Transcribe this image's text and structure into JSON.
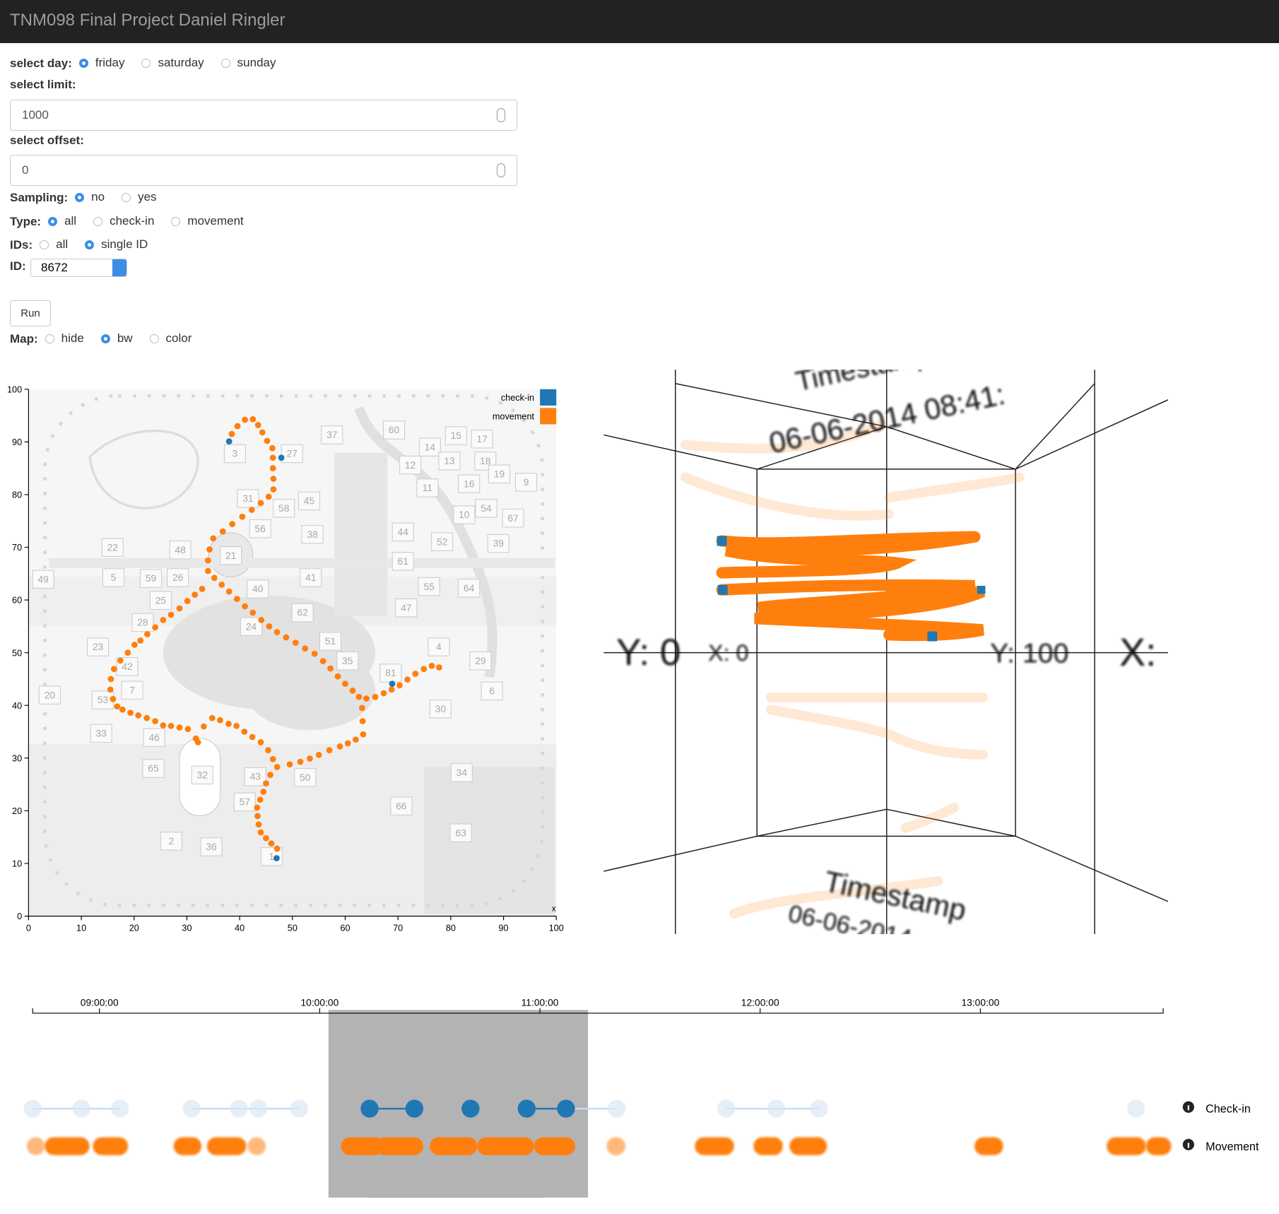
{
  "header": {
    "title": "TNM098 Final Project Daniel Ringler"
  },
  "controls": {
    "day": {
      "label": "select day:",
      "options": [
        "friday",
        "saturday",
        "sunday"
      ],
      "selected": 0
    },
    "limit": {
      "label": "select limit:",
      "value": 1000
    },
    "offset": {
      "label": "select offset:",
      "value": 0
    },
    "sampling": {
      "label": "Sampling:",
      "options": [
        "no",
        "yes"
      ],
      "selected": 0
    },
    "type": {
      "label": "Type:",
      "options": [
        "all",
        "check-in",
        "movement"
      ],
      "selected": 0
    },
    "ids": {
      "label": "IDs:",
      "options": [
        "all",
        "single ID"
      ],
      "selected": 1
    },
    "id": {
      "label": "ID:",
      "value": 8672
    },
    "run": "Run",
    "map": {
      "label": "Map:",
      "options": [
        "hide",
        "bw",
        "color"
      ],
      "selected": 1
    }
  },
  "map_labels": [
    "3",
    "27",
    "37",
    "60",
    "15",
    "14",
    "17",
    "13",
    "12",
    "18",
    "19",
    "11",
    "16",
    "9",
    "31",
    "58",
    "45",
    "10",
    "54",
    "67",
    "56",
    "38",
    "44",
    "52",
    "39",
    "22",
    "48",
    "21",
    "61",
    "49",
    "5",
    "59",
    "26",
    "40",
    "41",
    "55",
    "64",
    "25",
    "62",
    "47",
    "28",
    "24",
    "51",
    "4",
    "23",
    "35",
    "29",
    "42",
    "81",
    "7",
    "6",
    "20",
    "53",
    "30",
    "33",
    "46",
    "65",
    "32",
    "50",
    "34",
    "43",
    "57",
    "66",
    "63",
    "2",
    "36",
    "1"
  ],
  "three_d": {
    "top_title": "Timestamp",
    "top_time": "06-06-2014 08:41:",
    "bottom_title": "Timestamp",
    "bottom_time": "06-06-2014",
    "y_start": "Y: 0",
    "x_start": "X: 0",
    "y_end": "Y: 100",
    "x_end": "X:"
  },
  "chart_data": [
    {
      "type": "scatter",
      "xlim": [
        0,
        100
      ],
      "ylim": [
        0,
        100
      ],
      "xticks": [
        0,
        10,
        20,
        30,
        40,
        50,
        60,
        70,
        80,
        90,
        100
      ],
      "yticks": [
        0,
        10,
        20,
        30,
        40,
        50,
        60,
        70,
        80,
        90,
        100
      ],
      "x_label": "x",
      "legend": "top-right",
      "series": [
        {
          "name": "check-in",
          "color": "#1f77b4",
          "x": [
            38.0,
            47.9,
            68.9,
            47.0
          ],
          "values": [
            90.1,
            87.0,
            44.1,
            11.0
          ]
        },
        {
          "name": "movement",
          "color": "#ff7f0e",
          "x": [
            38.5,
            39.6,
            41,
            42.5,
            43.5,
            44.3,
            45.2,
            46.2,
            46.3,
            46.3,
            46.4,
            46.4,
            45.5,
            44,
            42.3,
            40.5,
            38.6,
            36.8,
            35,
            34.3,
            34,
            34,
            35.2,
            36.6,
            38,
            39.5,
            41,
            42.5,
            44.1,
            45.6,
            47.1,
            48.8,
            50.6,
            52.4,
            54.2,
            55.8,
            57.2,
            58.6,
            60,
            61.4,
            62.6,
            64,
            65.7,
            67.3,
            68.8,
            70.3,
            71.8,
            73.3,
            74.9,
            76.4,
            77.8,
            63.2,
            63.3,
            63.4,
            62,
            60.5,
            59,
            57,
            55,
            53.3,
            51.5,
            49.5,
            47.1,
            45.8,
            45,
            44.5,
            43.9,
            43.3,
            43.4,
            43.6,
            44,
            45,
            46,
            47.1,
            32.9,
            31.5,
            30.1,
            28.6,
            27,
            25.5,
            24,
            22.5,
            21.2,
            20.1,
            18.8,
            17.4,
            16.2,
            15.6,
            15.5,
            16,
            16.8,
            17.8,
            19.3,
            20.8,
            22.4,
            24,
            25.5,
            27,
            28.6,
            30.2,
            31.7,
            32.1,
            33.2,
            34.8,
            36.3,
            37.9,
            39.4,
            40.9,
            42.4,
            44,
            45.4,
            46.3
          ],
          "values": [
            91.5,
            93,
            94.2,
            94.3,
            93.2,
            91.8,
            90.2,
            88.8,
            87,
            85,
            83,
            81,
            79.6,
            78.4,
            77.1,
            75.8,
            74.4,
            73,
            71.7,
            69.6,
            67.5,
            65.5,
            64.2,
            62.9,
            61.6,
            60.2,
            58.8,
            57.6,
            56.2,
            55,
            53.9,
            52.9,
            51.9,
            50.8,
            49.8,
            48.4,
            47,
            45.5,
            44.1,
            42.8,
            41.6,
            41.3,
            41.6,
            42.3,
            43,
            43.8,
            44.9,
            46,
            46.9,
            47.5,
            47.2,
            39.5,
            37,
            34.5,
            33.5,
            32.8,
            32.2,
            31.5,
            30.6,
            29.9,
            29.3,
            28.8,
            28.3,
            26.8,
            25.2,
            23.6,
            22.1,
            20.6,
            19,
            17.4,
            15.9,
            14.8,
            13.8,
            12.8,
            62.1,
            61,
            59.8,
            58.4,
            57.2,
            56.2,
            54.8,
            53.5,
            52.3,
            51.5,
            50,
            48.5,
            46.9,
            45,
            43,
            41.2,
            39.8,
            39.2,
            38.6,
            38.1,
            37.6,
            37,
            36.2,
            36.1,
            35.8,
            35.5,
            33.7,
            33,
            36,
            37.6,
            37.2,
            36.5,
            36.1,
            35,
            34,
            33,
            31.5,
            29.8
          ]
        }
      ]
    },
    {
      "type": "timeline",
      "xlim": [
        521.8,
        829.8
      ],
      "xticks": [
        {
          "value": 540,
          "label": "09:00:00"
        },
        {
          "value": 600,
          "label": "10:00:00"
        },
        {
          "value": 660,
          "label": "11:00:00"
        },
        {
          "value": 720,
          "label": "12:00:00"
        },
        {
          "value": 780,
          "label": "13:00:00"
        }
      ],
      "brush": [
        602.4,
        673.1
      ],
      "series": [
        {
          "name": "Check-in",
          "color": "#1f77b4",
          "x": [
            521.8,
            535.1,
            545.6,
            565.1,
            578.0,
            583.3,
            594.4,
            613.6,
            625.8,
            641.1,
            656.4,
            667.1,
            680.9,
            710.7,
            724.4,
            736.0,
            822.4
          ]
        },
        {
          "name": "Movement",
          "color": "#ff7f0e",
          "x_start": [
            520.2,
            525.1,
            538.2,
            560.2,
            569.3,
            580.4,
            605.8,
            615.1,
            630.0,
            642.9,
            658.4,
            678.2,
            702.2,
            718.2,
            728.0,
            778.4,
            814.4,
            825.1
          ],
          "x_end": [
            525.1,
            537.3,
            547.8,
            567.8,
            580.0,
            585.3,
            617.3,
            628.2,
            642.9,
            658.4,
            669.6,
            683.3,
            712.9,
            726.2,
            738.2,
            786.2,
            825.1,
            832.0
          ]
        }
      ]
    }
  ]
}
